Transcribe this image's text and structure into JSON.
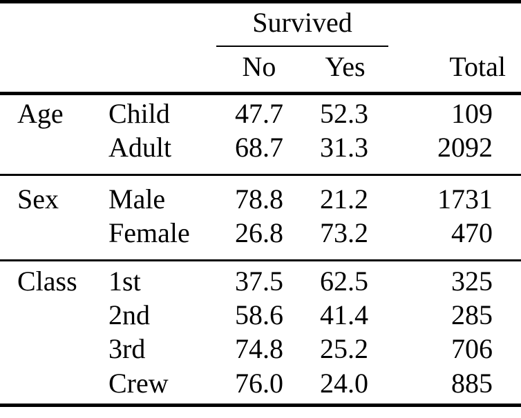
{
  "page": {
    "background": "#ffffff",
    "text_color": "#000000",
    "rule_color": "#000000"
  },
  "table": {
    "spanner": {
      "label": "Survived"
    },
    "columns": {
      "no": "No",
      "yes": "Yes",
      "total": "Total"
    },
    "sections": [
      {
        "group": "Age",
        "rows": [
          {
            "level": "Child",
            "no": "47.7",
            "yes": "52.3",
            "total": "109"
          },
          {
            "level": "Adult",
            "no": "68.7",
            "yes": "31.3",
            "total": "2092"
          }
        ]
      },
      {
        "group": "Sex",
        "rows": [
          {
            "level": "Male",
            "no": "78.8",
            "yes": "21.2",
            "total": "1731"
          },
          {
            "level": "Female",
            "no": "26.8",
            "yes": "73.2",
            "total": "470"
          }
        ]
      },
      {
        "group": "Class",
        "rows": [
          {
            "level": "1st",
            "no": "37.5",
            "yes": "62.5",
            "total": "325"
          },
          {
            "level": "2nd",
            "no": "58.6",
            "yes": "41.4",
            "total": "285"
          },
          {
            "level": "3rd",
            "no": "74.8",
            "yes": "25.2",
            "total": "706"
          },
          {
            "level": "Crew",
            "no": "76.0",
            "yes": "24.0",
            "total": "885"
          }
        ]
      }
    ]
  },
  "chart_data": {
    "type": "table",
    "column_group_label": "Survived",
    "columns": [
      "No",
      "Yes",
      "Total"
    ],
    "row_groups": [
      {
        "group": "Age",
        "rows": [
          {
            "level": "Child",
            "no": 47.7,
            "yes": 52.3,
            "total": 109
          },
          {
            "level": "Adult",
            "no": 68.7,
            "yes": 31.3,
            "total": 2092
          }
        ]
      },
      {
        "group": "Sex",
        "rows": [
          {
            "level": "Male",
            "no": 78.8,
            "yes": 21.2,
            "total": 1731
          },
          {
            "level": "Female",
            "no": 26.8,
            "yes": 73.2,
            "total": 470
          }
        ]
      },
      {
        "group": "Class",
        "rows": [
          {
            "level": "1st",
            "no": 37.5,
            "yes": 62.5,
            "total": 325
          },
          {
            "level": "2nd",
            "no": 58.6,
            "yes": 41.4,
            "total": 285
          },
          {
            "level": "3rd",
            "no": 74.8,
            "yes": 25.2,
            "total": 706
          },
          {
            "level": "Crew",
            "no": 76.0,
            "yes": 24.0,
            "total": 885
          }
        ]
      }
    ]
  }
}
